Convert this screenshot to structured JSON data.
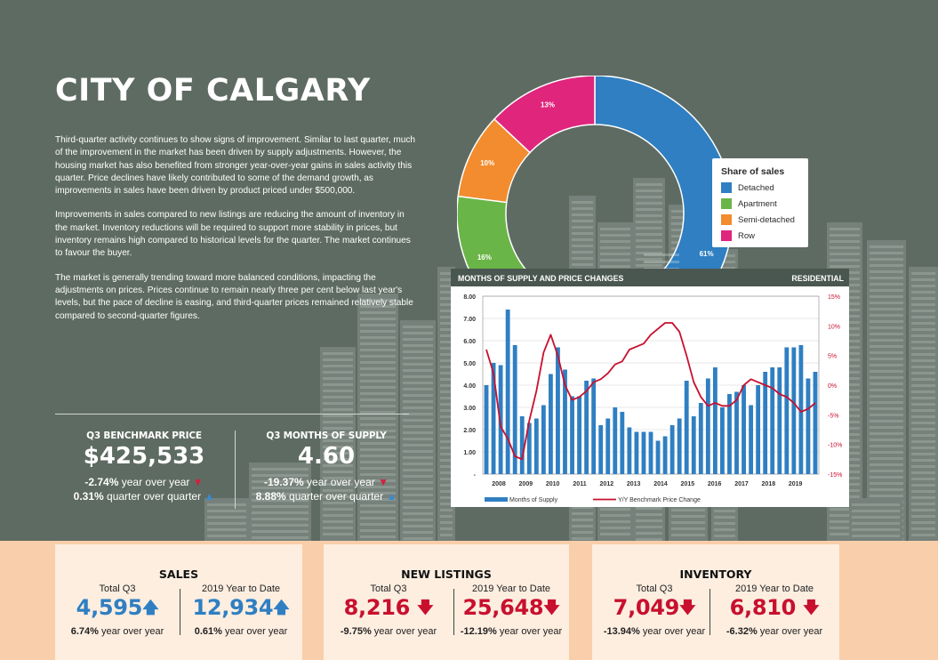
{
  "title": "CITY OF CALGARY",
  "paragraphs": [
    "Third-quarter activity continues to show signs of improvement. Similar to last quarter, much of the improvement in the market has been driven by supply adjustments. However, the housing market has also benefited from stronger year-over-year gains in sales activity this quarter. Price declines have likely contributed to some of the demand growth, as improvements in sales have been driven by product priced under $500,000.",
    "Improvements in sales compared to new listings are reducing the amount of inventory in the market. Inventory reductions will be required to support more stability in prices, but inventory remains high compared to historical levels for the quarter. The market continues to favour the buyer.",
    "The market is generally trending toward more balanced conditions, impacting the adjustments on prices. Prices continue to remain nearly three per cent below last year's levels, but the pace of decline is easing, and third-quarter prices remained relatively stable compared to second-quarter figures."
  ],
  "benchmark": {
    "label": "Q3 BENCHMARK PRICE",
    "value": "$425,533",
    "yoy_value": "-2.74%",
    "yoy_text": "year over year",
    "qoq_value": "0.31%",
    "qoq_text": "quarter over quarter"
  },
  "months_supply": {
    "label": "Q3 MONTHS OF SUPPLY",
    "value": "4.60",
    "yoy_value": "-19.37%",
    "yoy_text": "year over year",
    "qoq_value": "8.88%",
    "qoq_text": "quarter over quarter"
  },
  "colors": {
    "detached": "#2f7fc2",
    "apartment": "#6ab547",
    "semi": "#f28c2e",
    "row": "#e0257d",
    "bar": "#2f7fc2",
    "line": "#c8102e"
  },
  "chart_data": [
    {
      "type": "pie",
      "legend_title": "Share of sales",
      "legend_position": "right",
      "labels": [
        "Detached",
        "Apartment",
        "Semi-detached",
        "Row"
      ],
      "values": [
        61,
        16,
        10,
        13
      ],
      "value_labels": [
        "61%",
        "16%",
        "10%",
        "13%"
      ]
    },
    {
      "type": "bar",
      "title": "MONTHS OF SUPPLY AND  PRICE CHANGES",
      "title_right": "RESIDENTIAL",
      "x_ticks": [
        "2008",
        "2009",
        "2010",
        "2011",
        "2012",
        "2013",
        "2014",
        "2015",
        "2016",
        "2017",
        "2018",
        "2019"
      ],
      "y_left_ticks": [
        "8.00",
        "7.00",
        "6.00",
        "5.00",
        "4.00",
        "3.00",
        "2.00",
        "1.00",
        "-"
      ],
      "y_right_ticks": [
        "15%",
        "10%",
        "5%",
        "0%",
        "-5%",
        "-10%",
        "-15%"
      ],
      "ylim_left": [
        0,
        8
      ],
      "ylim_right": [
        -15,
        15
      ],
      "grid": "horizontal",
      "legend_position": "bottom",
      "series": [
        {
          "name": "Months of Supply",
          "kind": "bar",
          "values": [
            4.0,
            5.0,
            4.9,
            7.4,
            5.8,
            2.6,
            2.3,
            2.5,
            3.1,
            4.5,
            5.7,
            4.7,
            3.5,
            3.5,
            4.2,
            4.3,
            2.2,
            2.5,
            3.0,
            2.8,
            2.1,
            1.9,
            1.9,
            1.9,
            1.5,
            1.7,
            2.2,
            2.5,
            4.2,
            2.6,
            3.2,
            4.3,
            4.8,
            3.0,
            3.6,
            3.7,
            4.0,
            3.1,
            4.0,
            4.6,
            4.8,
            4.8,
            5.7,
            5.7,
            5.8,
            4.3,
            4.6
          ]
        },
        {
          "name": "Y/Y Benchmark Price Change",
          "kind": "line",
          "axis": "right",
          "values": [
            6.0,
            2.0,
            -7.0,
            -9.0,
            -12.0,
            -12.5,
            -6.0,
            -1.0,
            5.5,
            8.5,
            5.0,
            0.0,
            -2.5,
            -2.0,
            -1.0,
            0.5,
            1.0,
            2.0,
            3.5,
            4.0,
            6.0,
            6.5,
            7.0,
            8.5,
            9.5,
            10.5,
            10.5,
            9.0,
            5.0,
            0.5,
            -2.0,
            -3.5,
            -3.0,
            -3.5,
            -3.5,
            -2.5,
            0.0,
            1.0,
            0.5,
            0.0,
            -0.5,
            -1.5,
            -2.0,
            -3.0,
            -4.5,
            -4.0,
            -3.0
          ]
        }
      ]
    }
  ],
  "sales": {
    "title": "SALES",
    "q3_label": "Total Q3",
    "q3_value": "4,595",
    "q3_change_value": "6.74%",
    "q3_change_text": "year over year",
    "ytd_label": "2019 Year to Date",
    "ytd_value": "12,934",
    "ytd_change_value": "0.61%",
    "ytd_change_text": "year over year"
  },
  "listings": {
    "title": "NEW LISTINGS",
    "q3_label": "Total Q3",
    "q3_value": "8,216",
    "q3_change_value": "-9.75%",
    "q3_change_text": "year over year",
    "ytd_label": "2019 Year to Date",
    "ytd_value": "25,648",
    "ytd_change_value": "-12.19%",
    "ytd_change_text": "year over year"
  },
  "inventory": {
    "title": "INVENTORY",
    "q3_label": "Total Q3",
    "q3_value": "7,049",
    "q3_change_value": "-13.94%",
    "q3_change_text": "year over year",
    "ytd_label": "2019 Year to Date",
    "ytd_value": "6,810",
    "ytd_change_value": "-6.32%",
    "ytd_change_text": "year over year"
  }
}
